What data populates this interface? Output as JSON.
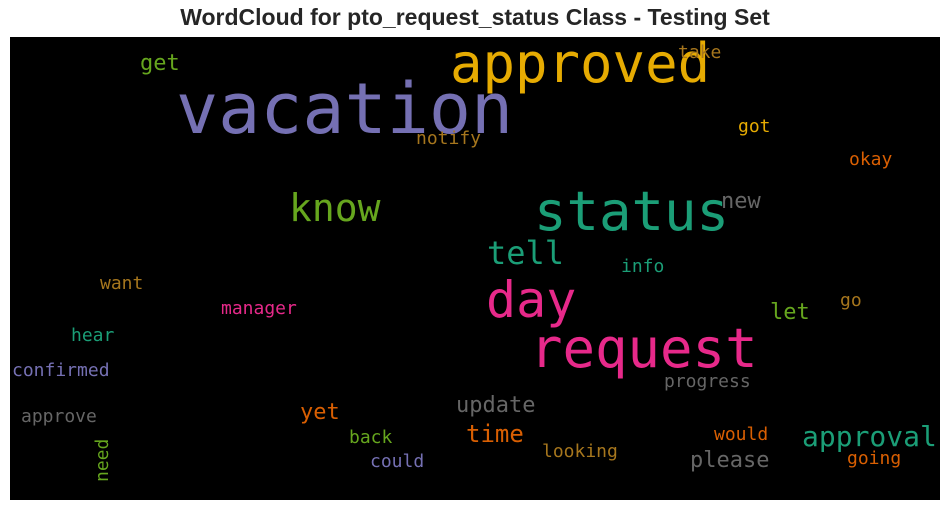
{
  "title": "WordCloud for pto_request_status Class - Testing Set",
  "words": [
    {
      "text": "vacation",
      "color": "#7570b3"
    },
    {
      "text": "approved",
      "color": "#e6ab02"
    },
    {
      "text": "status",
      "color": "#1b9e77"
    },
    {
      "text": "request",
      "color": "#e7298a"
    },
    {
      "text": "day",
      "color": "#e7298a"
    },
    {
      "text": "know",
      "color": "#66a61e"
    },
    {
      "text": "tell",
      "color": "#1b9e77"
    },
    {
      "text": "approval",
      "color": "#1b9e77"
    },
    {
      "text": "update",
      "color": "#666666"
    },
    {
      "text": "time",
      "color": "#d95f02"
    },
    {
      "text": "please",
      "color": "#666666"
    },
    {
      "text": "new",
      "color": "#666666"
    },
    {
      "text": "get",
      "color": "#66a61e"
    },
    {
      "text": "let",
      "color": "#66a61e"
    },
    {
      "text": "yet",
      "color": "#d95f02"
    },
    {
      "text": "take",
      "color": "#a6761d"
    },
    {
      "text": "notify",
      "color": "#a6761d"
    },
    {
      "text": "got",
      "color": "#e6ab02"
    },
    {
      "text": "okay",
      "color": "#d95f02"
    },
    {
      "text": "info",
      "color": "#1b9e77"
    },
    {
      "text": "want",
      "color": "#a6761d"
    },
    {
      "text": "manager",
      "color": "#e7298a"
    },
    {
      "text": "go",
      "color": "#a6761d"
    },
    {
      "text": "hear",
      "color": "#1b9e77"
    },
    {
      "text": "confirmed",
      "color": "#7570b3"
    },
    {
      "text": "progress",
      "color": "#666666"
    },
    {
      "text": "approve",
      "color": "#666666"
    },
    {
      "text": "back",
      "color": "#66a61e"
    },
    {
      "text": "could",
      "color": "#7570b3"
    },
    {
      "text": "looking",
      "color": "#a6761d"
    },
    {
      "text": "would",
      "color": "#d95f02"
    },
    {
      "text": "going",
      "color": "#d95f02"
    },
    {
      "text": "need",
      "color": "#66a61e"
    }
  ]
}
